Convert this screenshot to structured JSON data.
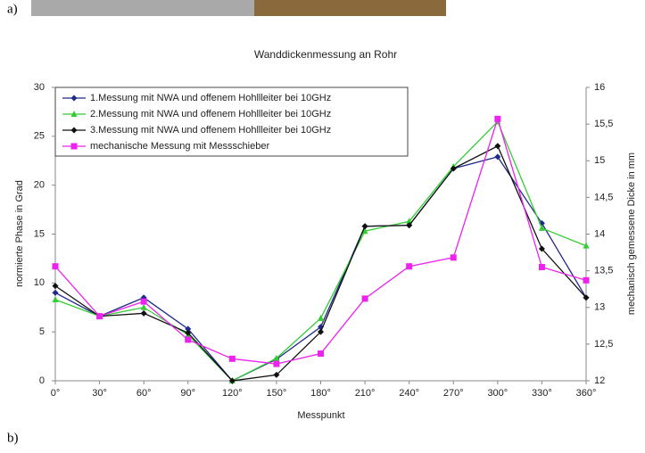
{
  "chart_data": {
    "type": "line",
    "title": "Wanddickenmessung an Rohr",
    "panel_labels": [
      "a)",
      "b)"
    ],
    "x_label": "Messpunkt",
    "y_label": "normierte Phase in Grad",
    "y2_label": "mechanisch gemessene Dicke in mm",
    "categories": [
      "0°",
      "30°",
      "60°",
      "90°",
      "120°",
      "150°",
      "180°",
      "210°",
      "240°",
      "270°",
      "300°",
      "330°",
      "360°"
    ],
    "ylim": [
      0,
      30
    ],
    "yticks": [
      0,
      5,
      10,
      15,
      20,
      25,
      30
    ],
    "y2lim": [
      12,
      16
    ],
    "y2ticks": [
      12,
      {
        "value": 12.5,
        "label": "12,5"
      },
      13,
      {
        "value": 13.5,
        "label": "13,5"
      },
      14,
      {
        "value": 14.5,
        "label": "14,5"
      },
      15,
      {
        "value": 15.5,
        "label": "15,5"
      },
      16
    ],
    "grid": false,
    "legend": "upper left",
    "series": [
      {
        "name": "1.Messung mit NWA und offenem Hohllleiter bei 10GHz",
        "color": "#1f2a8a",
        "marker": "diamond",
        "values": [
          9.0,
          6.6,
          8.5,
          5.3,
          0,
          2.2,
          5.5,
          15.8,
          15.9,
          21.7,
          22.9,
          16.1,
          8.5
        ]
      },
      {
        "name": "2.Messung mit NWA und offenem Hohllleiter bei 10GHz",
        "color": "#33cc33",
        "marker": "triangle",
        "values": [
          8.3,
          6.6,
          7.5,
          4.7,
          0,
          2.3,
          6.4,
          15.3,
          16.3,
          21.9,
          26.5,
          15.6,
          13.8
        ]
      },
      {
        "name": "3.Messung mit NWA und offenem Hohllleiter bei 10GHz",
        "color": "#111111",
        "marker": "diamond",
        "values": [
          9.7,
          6.6,
          6.9,
          4.9,
          0,
          0.6,
          5.0,
          15.8,
          15.9,
          21.7,
          24.0,
          13.5,
          8.5
        ]
      },
      {
        "name": "mechanische Messung mit Messschieber",
        "color": "#ee22ee",
        "marker": "square",
        "axis": "y2",
        "values": [
          13.56,
          12.88,
          13.08,
          12.56,
          12.3,
          12.23,
          12.37,
          13.12,
          13.56,
          13.68,
          15.57,
          13.55,
          13.37
        ]
      }
    ]
  }
}
